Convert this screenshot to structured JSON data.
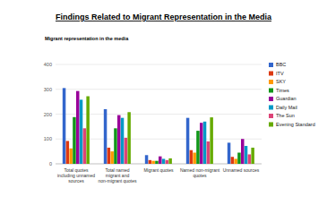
{
  "chart_data": {
    "type": "bar",
    "title": "Findings Related to Migrant Representation in the Media",
    "subtitle": "Migrant representation in the media",
    "categories": [
      "Total quotes including unnamed sources",
      "Total named migrant and non-migrant quotes",
      "Migrant quotes",
      "Named non-migrant quotes",
      "Unnamed sources"
    ],
    "series": [
      {
        "name": "BBC",
        "color": "#3366cc",
        "values": [
          305,
          220,
          35,
          185,
          85
        ]
      },
      {
        "name": "ITV",
        "color": "#dc3912",
        "values": [
          92,
          65,
          15,
          55,
          28
        ]
      },
      {
        "name": "SKY",
        "color": "#ff9900",
        "values": [
          62,
          50,
          12,
          45,
          20
        ]
      },
      {
        "name": "Times",
        "color": "#109618",
        "values": [
          188,
          143,
          12,
          133,
          45
        ]
      },
      {
        "name": "Guardian",
        "color": "#990099",
        "values": [
          293,
          196,
          30,
          165,
          100
        ]
      },
      {
        "name": "Daily Mail",
        "color": "#0099c6",
        "values": [
          258,
          185,
          20,
          170,
          72
        ]
      },
      {
        "name": "The Sun",
        "color": "#dd4477",
        "values": [
          143,
          105,
          15,
          90,
          38
        ]
      },
      {
        "name": "Evening Standard",
        "color": "#66aa00",
        "values": [
          272,
          208,
          22,
          187,
          65
        ]
      }
    ],
    "ylim": [
      0,
      400
    ],
    "yticks": [
      0,
      100,
      200,
      300,
      400
    ],
    "grid": true,
    "legend": "right"
  }
}
